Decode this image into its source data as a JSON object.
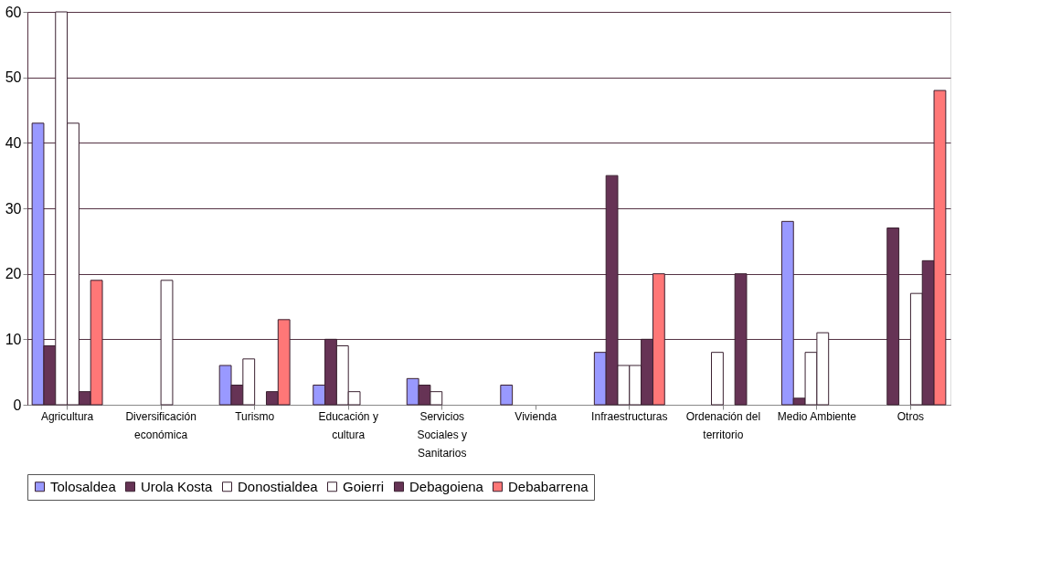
{
  "chart_data": {
    "type": "bar",
    "categories": [
      "Agricultura",
      "Diversificación económica",
      "Turismo",
      "Educación y cultura",
      "Servicios Sociales y Sanitarios",
      "Vivienda",
      "Infraestructuras",
      "Ordenación del territorio",
      "Medio Ambiente",
      "Otros"
    ],
    "series": [
      {
        "name": "Tolosaldea",
        "color": "#9999ff",
        "values": [
          43,
          0,
          6,
          3,
          4,
          3,
          8,
          0,
          28,
          0
        ]
      },
      {
        "name": "Urola Kosta",
        "color": "#663355",
        "values": [
          9,
          0,
          3,
          10,
          3,
          0,
          35,
          0,
          1,
          27
        ]
      },
      {
        "name": "Donostialdea",
        "color": "#ffffff",
        "values": [
          60,
          0,
          7,
          9,
          2,
          0,
          6,
          8,
          8,
          0
        ]
      },
      {
        "name": "Goierri",
        "color": "#ffffff",
        "values": [
          43,
          19,
          0,
          2,
          0,
          0,
          6,
          0,
          11,
          17
        ]
      },
      {
        "name": "Debagoiena",
        "color": "#663355",
        "values": [
          2,
          0,
          2,
          0,
          0,
          0,
          10,
          20,
          0,
          22
        ]
      },
      {
        "name": "Debabarrena",
        "color": "#ff7777",
        "values": [
          19,
          0,
          13,
          0,
          0,
          0,
          20,
          0,
          0,
          48
        ]
      }
    ],
    "ylim": [
      0,
      60
    ],
    "yticks": [
      0,
      10,
      20,
      30,
      40,
      50,
      60
    ],
    "grid": "y",
    "legend": "bottom"
  }
}
